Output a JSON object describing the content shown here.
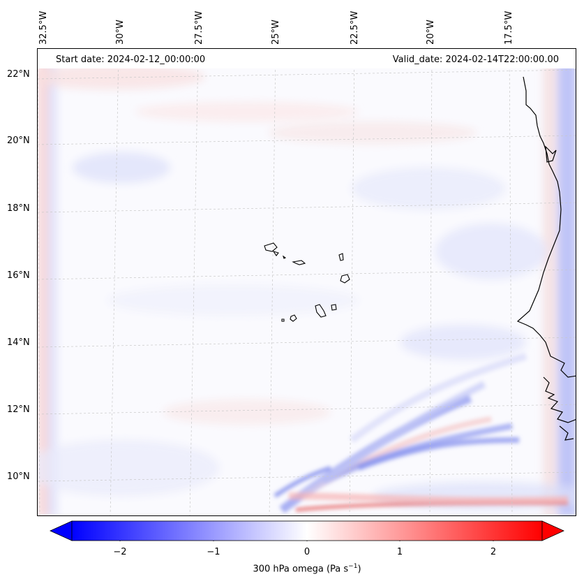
{
  "header": {
    "start_date": "Start date: 2024-02-12_00:00:00",
    "valid_date": "Valid_date: 2024-02-14T22:00:00.00"
  },
  "axes": {
    "longitude_labels": [
      "32.5°W",
      "30°W",
      "27.5°W",
      "25°W",
      "22.5°W",
      "20°W",
      "17.5°W"
    ],
    "latitude_labels": [
      "22°N",
      "20°N",
      "18°N",
      "16°N",
      "14°N",
      "12°N",
      "10°N"
    ]
  },
  "colorbar": {
    "tick_labels": [
      "−2",
      "−1",
      "0",
      "1",
      "2"
    ],
    "title_prefix": "300 hPa omega (Pa s",
    "title_exp": "−1",
    "title_suffix": ")",
    "min_color": "#0000ff",
    "mid_color": "#ffffff",
    "max_color": "#ff0000"
  },
  "map": {
    "field": "300 hPa omega",
    "region": "Cape Verde / West Africa coast",
    "coastline_color": "#000000"
  }
}
